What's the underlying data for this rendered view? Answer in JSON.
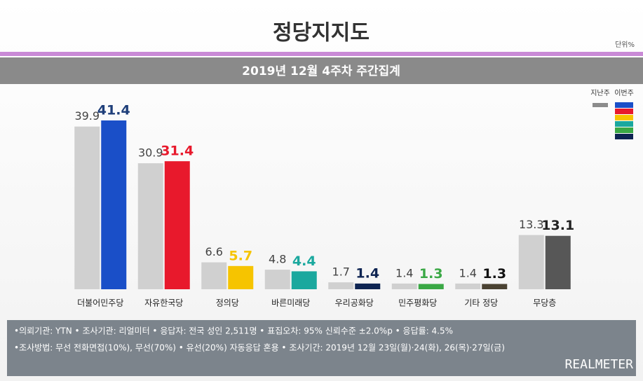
{
  "chart_data": {
    "type": "bar",
    "title": "정당지지도",
    "unit": "단위%",
    "subtitle": "2019년 12월 4주차 주간집계",
    "categories": [
      "더불어민주당",
      "자유한국당",
      "정의당",
      "바른미래당",
      "우리공화당",
      "민주평화당",
      "기타 정당",
      "무당층"
    ],
    "series": [
      {
        "name": "지난주",
        "color": "#d0d0d0",
        "legend_color": "#8c8c8c",
        "label_color": "#444444",
        "values": [
          39.9,
          30.9,
          6.6,
          4.8,
          1.7,
          1.4,
          1.4,
          13.3
        ]
      },
      {
        "name": "이번주",
        "colors": [
          "#1a4fc8",
          "#e8192c",
          "#f6c400",
          "#1aa89e",
          "#0e2452",
          "#3aa845",
          "#4a4232",
          "#575757"
        ],
        "label_colors": [
          "#1f3f7a",
          "#e8192c",
          "#f6c400",
          "#1aa89e",
          "#0e2452",
          "#3aa845",
          "#111111",
          "#222222"
        ],
        "legend_colors": [
          "#1a4fc8",
          "#e8192c",
          "#f6c400",
          "#1aa89e",
          "#3aa845",
          "#0e2452"
        ],
        "values": [
          41.4,
          31.4,
          5.7,
          4.4,
          1.4,
          1.3,
          1.3,
          13.1
        ]
      }
    ],
    "ylim": [
      0,
      45
    ],
    "notes": [
      "•의뢰기관: YTN • 조사기관: 리얼미터 • 응답자: 전국 성인 2,511명 • 표집오차: 95% 신뢰수준 ±2.0%p • 응답률: 4.5%",
      "•조사방법: 무선 전화면접(10%), 무선(70%) • 유선(20%) 자동응답 혼용 • 조사기간: 2019년 12월 23일(월)·24(화), 26(목)·27일(금)"
    ],
    "brand": "REALMETER"
  }
}
